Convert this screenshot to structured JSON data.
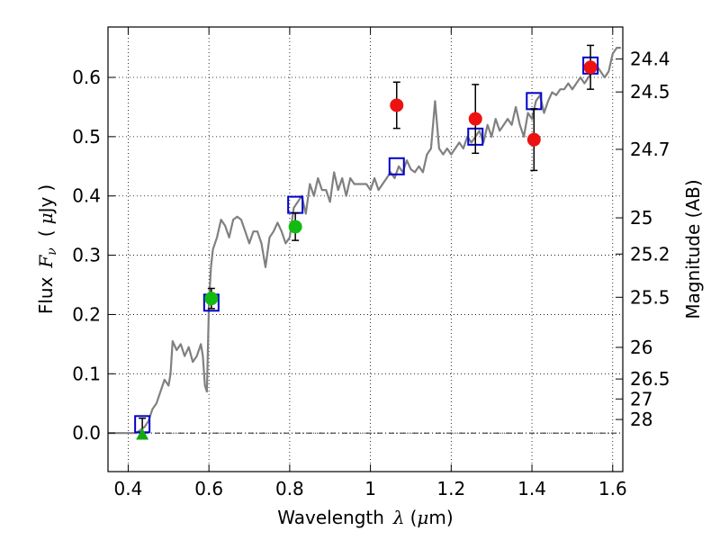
{
  "chart_data": {
    "type": "scatter",
    "xlabel": "Wavelength",
    "xlabel_symbol": "λ",
    "xlabel_unit_open": "(",
    "xlabel_unit_mu": "μ",
    "xlabel_unit_rest": "m)",
    "ylabel": "Flux",
    "ylabel_symbol": "F",
    "ylabel_subscript": "ν",
    "ylabel_unit_open": "(",
    "ylabel_unit_mu": "μ",
    "ylabel_unit_rest": "Jy",
    "ylabel_unit_close": ")",
    "y2label": "Magnitude (AB)",
    "xlim": [
      0.35,
      1.625
    ],
    "ylim": [
      -0.065,
      0.685
    ],
    "grid": true,
    "x_ticks": [
      0.4,
      0.6,
      0.8,
      1.0,
      1.2,
      1.4,
      1.6
    ],
    "x_tick_labels": [
      "0.4",
      "0.6",
      "0.8",
      "1",
      "1.2",
      "1.4",
      "1.6"
    ],
    "y_ticks": [
      0.0,
      0.1,
      0.2,
      0.3,
      0.4,
      0.5,
      0.6
    ],
    "y_tick_labels": [
      "0.0",
      "0.1",
      "0.2",
      "0.3",
      "0.4",
      "0.5",
      "0.6"
    ],
    "mag_ticks": [
      "24.4",
      "24.5",
      "24.7",
      "25",
      "25.2",
      "25.5",
      "26",
      "26.5",
      "27",
      "28"
    ],
    "series": [
      {
        "name": "SED model spectrum",
        "kind": "line",
        "color": "#808080",
        "x": [
          0.35,
          0.42,
          0.43,
          0.44,
          0.45,
          0.46,
          0.47,
          0.48,
          0.49,
          0.5,
          0.505,
          0.51,
          0.52,
          0.53,
          0.54,
          0.55,
          0.56,
          0.57,
          0.58,
          0.585,
          0.59,
          0.595,
          0.6,
          0.605,
          0.61,
          0.62,
          0.63,
          0.64,
          0.65,
          0.66,
          0.67,
          0.68,
          0.69,
          0.7,
          0.71,
          0.72,
          0.73,
          0.74,
          0.75,
          0.76,
          0.77,
          0.78,
          0.79,
          0.8,
          0.81,
          0.82,
          0.83,
          0.84,
          0.85,
          0.86,
          0.87,
          0.88,
          0.89,
          0.9,
          0.91,
          0.92,
          0.93,
          0.94,
          0.95,
          0.96,
          0.97,
          0.98,
          0.99,
          1.0,
          1.01,
          1.02,
          1.03,
          1.04,
          1.05,
          1.06,
          1.07,
          1.08,
          1.09,
          1.1,
          1.11,
          1.12,
          1.13,
          1.14,
          1.15,
          1.16,
          1.17,
          1.18,
          1.19,
          1.2,
          1.21,
          1.22,
          1.23,
          1.24,
          1.25,
          1.26,
          1.27,
          1.28,
          1.29,
          1.3,
          1.31,
          1.32,
          1.33,
          1.34,
          1.35,
          1.36,
          1.37,
          1.38,
          1.39,
          1.4,
          1.41,
          1.42,
          1.43,
          1.44,
          1.45,
          1.46,
          1.47,
          1.48,
          1.49,
          1.5,
          1.51,
          1.52,
          1.53,
          1.54,
          1.55,
          1.56,
          1.57,
          1.58,
          1.59,
          1.6,
          1.61,
          1.62
        ],
        "y": [
          0.0,
          0.0,
          0.005,
          0.01,
          0.02,
          0.04,
          0.05,
          0.07,
          0.09,
          0.08,
          0.1,
          0.155,
          0.14,
          0.15,
          0.13,
          0.145,
          0.12,
          0.13,
          0.15,
          0.13,
          0.08,
          0.07,
          0.22,
          0.28,
          0.31,
          0.33,
          0.36,
          0.35,
          0.33,
          0.36,
          0.365,
          0.36,
          0.34,
          0.32,
          0.34,
          0.34,
          0.32,
          0.28,
          0.33,
          0.34,
          0.355,
          0.34,
          0.32,
          0.33,
          0.38,
          0.39,
          0.4,
          0.37,
          0.42,
          0.4,
          0.43,
          0.41,
          0.41,
          0.39,
          0.44,
          0.41,
          0.43,
          0.4,
          0.43,
          0.42,
          0.42,
          0.42,
          0.42,
          0.41,
          0.43,
          0.41,
          0.42,
          0.43,
          0.44,
          0.43,
          0.45,
          0.44,
          0.46,
          0.445,
          0.44,
          0.45,
          0.44,
          0.47,
          0.48,
          0.56,
          0.48,
          0.47,
          0.48,
          0.47,
          0.48,
          0.49,
          0.48,
          0.5,
          0.49,
          0.5,
          0.51,
          0.49,
          0.52,
          0.5,
          0.53,
          0.51,
          0.52,
          0.53,
          0.52,
          0.55,
          0.52,
          0.5,
          0.54,
          0.53,
          0.56,
          0.57,
          0.54,
          0.56,
          0.575,
          0.57,
          0.58,
          0.58,
          0.59,
          0.58,
          0.59,
          0.6,
          0.59,
          0.6,
          0.61,
          0.62,
          0.61,
          0.6,
          0.61,
          0.64,
          0.65,
          0.65
        ]
      },
      {
        "name": "Model photometry",
        "kind": "marker",
        "marker": "open-square",
        "color": "#0000cc",
        "x": [
          0.435,
          0.606,
          0.814,
          1.065,
          1.26,
          1.405,
          1.545
        ],
        "y": [
          0.015,
          0.22,
          0.385,
          0.45,
          0.5,
          0.56,
          0.62
        ]
      },
      {
        "name": "Detections (red)",
        "kind": "marker",
        "marker": "circle",
        "color": "#ee1111",
        "x": [
          1.065,
          1.26,
          1.405,
          1.545
        ],
        "y": [
          0.553,
          0.53,
          0.495,
          0.617
        ],
        "yerr": [
          0.039,
          0.058,
          0.052,
          0.037
        ]
      },
      {
        "name": "Detections (green)",
        "kind": "marker",
        "marker": "circle",
        "color": "#11bb11",
        "x": [
          0.606,
          0.814
        ],
        "y": [
          0.227,
          0.348
        ],
        "yerr": [
          0.017,
          0.023
        ]
      },
      {
        "name": "Upper limit (green triangle)",
        "kind": "marker",
        "marker": "triangle",
        "color": "#11aa11",
        "x": [
          0.435
        ],
        "y": [
          -0.002
        ],
        "yerr": [
          0.0
        ]
      }
    ],
    "extra_errorbars": [
      {
        "x": 0.435,
        "ylow": 0.0,
        "yhigh": 0.025
      }
    ]
  }
}
